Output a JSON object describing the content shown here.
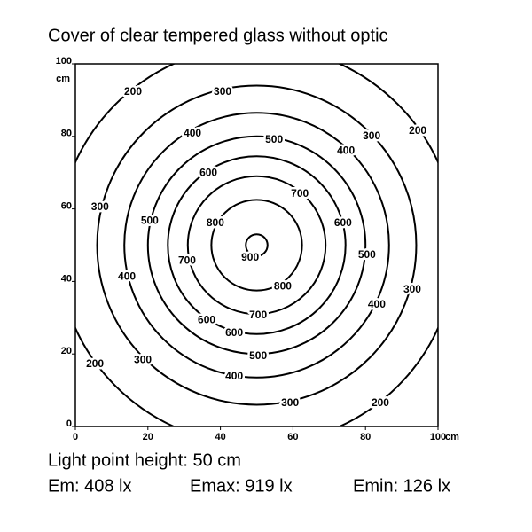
{
  "chart_data": {
    "type": "contour",
    "title": "Cover of clear tempered glass without optic",
    "x_unit": "cm",
    "y_unit": "cm",
    "xlim": [
      0,
      100
    ],
    "ylim": [
      0,
      100
    ],
    "xticks": [
      0,
      20,
      40,
      60,
      80,
      100
    ],
    "yticks": [
      0,
      20,
      40,
      60,
      80,
      100
    ],
    "center": {
      "x": 50,
      "y": 50
    },
    "contours": [
      {
        "level": 900,
        "radius": 3,
        "labels": [
          [
            48.2,
            46.5
          ]
        ]
      },
      {
        "level": 800,
        "radius": 12.5,
        "labels": [
          [
            38.6,
            56.0
          ],
          [
            57.2,
            38.6
          ]
        ]
      },
      {
        "level": 700,
        "radius": 19,
        "labels": [
          [
            61.9,
            64.1
          ],
          [
            30.8,
            45.7
          ],
          [
            50.4,
            30.6
          ]
        ]
      },
      {
        "level": 600,
        "radius": 24.5,
        "labels": [
          [
            36.7,
            69.9
          ],
          [
            73.8,
            56.0
          ],
          [
            36.2,
            29.3
          ],
          [
            43.8,
            25.7
          ]
        ]
      },
      {
        "level": 500,
        "radius": 30,
        "labels": [
          [
            54.8,
            79.0
          ],
          [
            20.5,
            56.7
          ],
          [
            80.4,
            47.2
          ],
          [
            50.4,
            19.3
          ]
        ]
      },
      {
        "level": 400,
        "radius": 36.5,
        "labels": [
          [
            32.3,
            80.7
          ],
          [
            74.6,
            76.0
          ],
          [
            14.2,
            41.3
          ],
          [
            83.1,
            33.5
          ],
          [
            43.8,
            13.7
          ]
        ]
      },
      {
        "level": 300,
        "radius": 44,
        "labels": [
          [
            40.6,
            92.2
          ],
          [
            81.7,
            80.0
          ],
          [
            6.8,
            60.4
          ],
          [
            92.9,
            37.7
          ],
          [
            18.6,
            18.3
          ],
          [
            59.2,
            6.4
          ]
        ]
      },
      {
        "level": 200,
        "radius": 55,
        "labels": [
          [
            15.9,
            92.2
          ],
          [
            94.4,
            81.4
          ],
          [
            5.4,
            17.1
          ],
          [
            84.1,
            6.4
          ]
        ]
      }
    ],
    "footer": {
      "height": "Light point height: 50 cm",
      "em": "Em: 408 lx",
      "emax": "Emax: 919 lx",
      "emin": "Emin: 126 lx"
    }
  }
}
